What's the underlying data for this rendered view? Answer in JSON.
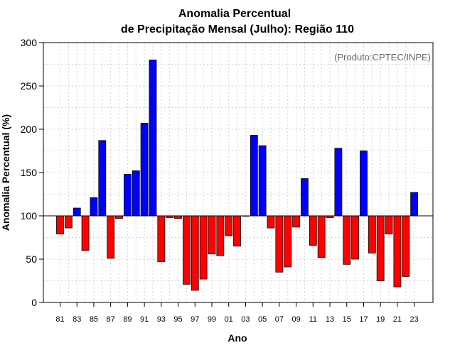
{
  "chart_data": {
    "type": "bar",
    "title_line1": "Anomalia Percentual",
    "title_line2": "de Precipitação Mensal (Julho): Região 110",
    "xlabel": "Ano",
    "ylabel": "Anomalia Percentual (%)",
    "annotation": "(Produto:CPTEC/INPE)",
    "ylim": [
      0,
      300
    ],
    "yticks": [
      0,
      50,
      100,
      150,
      200,
      250,
      300
    ],
    "baseline": 100,
    "grid": true,
    "colors": {
      "above": "#0000ff",
      "below": "#ff0000",
      "edge": "#000000",
      "grid": "#d3d3d3"
    },
    "categories": [
      "81",
      "82",
      "83",
      "84",
      "85",
      "86",
      "87",
      "88",
      "89",
      "90",
      "91",
      "92",
      "93",
      "94",
      "95",
      "96",
      "97",
      "98",
      "99",
      "00",
      "01",
      "02",
      "03",
      "04",
      "05",
      "06",
      "07",
      "08",
      "09",
      "10",
      "11",
      "12",
      "13",
      "14",
      "15",
      "16",
      "17",
      "18",
      "19",
      "20",
      "21",
      "22",
      "23"
    ],
    "xtick_labels": [
      "81",
      "83",
      "85",
      "87",
      "89",
      "91",
      "93",
      "95",
      "97",
      "99",
      "01",
      "03",
      "05",
      "07",
      "09",
      "11",
      "13",
      "15",
      "17",
      "19",
      "21",
      "23"
    ],
    "values": [
      79,
      86,
      109,
      60,
      121,
      187,
      51,
      97,
      148,
      152,
      207,
      280,
      47,
      98,
      97,
      21,
      14,
      27,
      56,
      54,
      77,
      65,
      100,
      193,
      181,
      86,
      35,
      41,
      87,
      143,
      66,
      52,
      98,
      178,
      44,
      50,
      175,
      57,
      25,
      79,
      18,
      30,
      127
    ]
  }
}
